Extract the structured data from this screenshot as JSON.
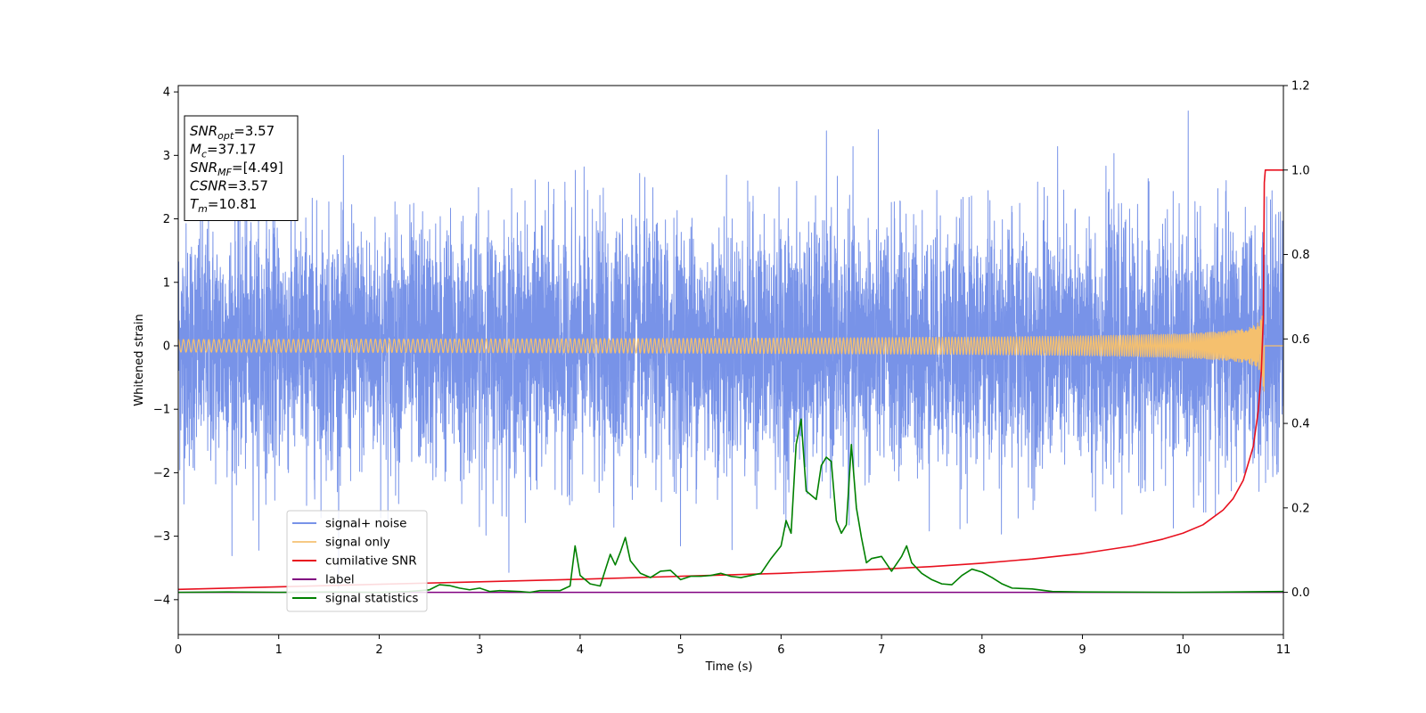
{
  "chart_data": {
    "type": "line",
    "xlabel": "Time (s)",
    "ylabel": "Whitened strain",
    "xlim": [
      0,
      11
    ],
    "ylim_left": [
      -4.55,
      4.1
    ],
    "ylim_right": [
      -0.1,
      1.2
    ],
    "x_ticks": [
      0,
      1,
      2,
      3,
      4,
      5,
      6,
      7,
      8,
      9,
      10,
      11
    ],
    "y_ticks_left": [
      -4,
      -3,
      -2,
      -1,
      0,
      1,
      2,
      3,
      4
    ],
    "y_ticks_right": [
      0.0,
      0.2,
      0.4,
      0.6,
      0.8,
      1.0,
      1.2
    ],
    "grid": false,
    "legend_placement": "lower-left",
    "annotation": {
      "placement": "upper-left",
      "lines": [
        {
          "name": "SNR",
          "sub": "opt",
          "value": "=3.57"
        },
        {
          "name": "M",
          "sub": "c",
          "value": "=37.17"
        },
        {
          "name": "SNR",
          "sub": "MF",
          "value": "=[4.49]"
        },
        {
          "name": "CSNR",
          "sub": "",
          "value": "=3.57"
        },
        {
          "name": "T",
          "sub": "m",
          "value": "=10.81"
        }
      ]
    },
    "series": [
      {
        "name": "signal+ noise",
        "color": "#7893e8",
        "axis": "left",
        "description_kind": "noise",
        "typical_range": [
          -2.7,
          2.7
        ],
        "extreme_range": [
          -4.1,
          3.7
        ]
      },
      {
        "name": "signal only",
        "color": "#f5c06e",
        "axis": "left",
        "description_kind": "chirp",
        "merger_time": 10.81,
        "peak_amplitude": 0.8
      },
      {
        "name": "cumilative SNR",
        "color": "#e8101e",
        "axis": "right",
        "points": [
          [
            0,
            0.007
          ],
          [
            1,
            0.013
          ],
          [
            2,
            0.019
          ],
          [
            3,
            0.025
          ],
          [
            4,
            0.031
          ],
          [
            5,
            0.038
          ],
          [
            6,
            0.045
          ],
          [
            6.5,
            0.05
          ],
          [
            7,
            0.055
          ],
          [
            7.5,
            0.061
          ],
          [
            8,
            0.069
          ],
          [
            8.5,
            0.079
          ],
          [
            9,
            0.092
          ],
          [
            9.5,
            0.11
          ],
          [
            9.8,
            0.126
          ],
          [
            10,
            0.14
          ],
          [
            10.2,
            0.16
          ],
          [
            10.4,
            0.195
          ],
          [
            10.5,
            0.222
          ],
          [
            10.6,
            0.265
          ],
          [
            10.7,
            0.345
          ],
          [
            10.75,
            0.43
          ],
          [
            10.78,
            0.52
          ],
          [
            10.8,
            0.65
          ],
          [
            10.81,
            0.97
          ],
          [
            10.82,
            1.0
          ],
          [
            11,
            1.0
          ]
        ]
      },
      {
        "name": "label",
        "color": "#800080",
        "axis": "right",
        "points": [
          [
            0,
            0.0
          ],
          [
            11,
            0.0
          ]
        ]
      },
      {
        "name": "signal statistics",
        "color": "#008000",
        "axis": "right",
        "points": [
          [
            0,
            0.0
          ],
          [
            0.5,
            0.001
          ],
          [
            1,
            0.0
          ],
          [
            1.5,
            0.001
          ],
          [
            2,
            0.0
          ],
          [
            2.3,
            0.002
          ],
          [
            2.5,
            0.006
          ],
          [
            2.6,
            0.018
          ],
          [
            2.7,
            0.016
          ],
          [
            2.8,
            0.01
          ],
          [
            2.9,
            0.006
          ],
          [
            3.0,
            0.01
          ],
          [
            3.1,
            0.002
          ],
          [
            3.2,
            0.004
          ],
          [
            3.4,
            0.002
          ],
          [
            3.5,
            0.0
          ],
          [
            3.6,
            0.004
          ],
          [
            3.8,
            0.004
          ],
          [
            3.9,
            0.015
          ],
          [
            3.95,
            0.11
          ],
          [
            4.0,
            0.04
          ],
          [
            4.1,
            0.02
          ],
          [
            4.2,
            0.015
          ],
          [
            4.3,
            0.09
          ],
          [
            4.35,
            0.065
          ],
          [
            4.4,
            0.095
          ],
          [
            4.45,
            0.13
          ],
          [
            4.5,
            0.075
          ],
          [
            4.6,
            0.045
          ],
          [
            4.7,
            0.035
          ],
          [
            4.8,
            0.05
          ],
          [
            4.9,
            0.052
          ],
          [
            5.0,
            0.03
          ],
          [
            5.1,
            0.038
          ],
          [
            5.2,
            0.038
          ],
          [
            5.3,
            0.04
          ],
          [
            5.4,
            0.045
          ],
          [
            5.5,
            0.038
          ],
          [
            5.6,
            0.035
          ],
          [
            5.7,
            0.04
          ],
          [
            5.8,
            0.045
          ],
          [
            5.9,
            0.08
          ],
          [
            6.0,
            0.11
          ],
          [
            6.05,
            0.17
          ],
          [
            6.1,
            0.14
          ],
          [
            6.15,
            0.35
          ],
          [
            6.2,
            0.41
          ],
          [
            6.25,
            0.24
          ],
          [
            6.3,
            0.23
          ],
          [
            6.35,
            0.22
          ],
          [
            6.4,
            0.3
          ],
          [
            6.45,
            0.32
          ],
          [
            6.5,
            0.31
          ],
          [
            6.55,
            0.17
          ],
          [
            6.6,
            0.14
          ],
          [
            6.65,
            0.16
          ],
          [
            6.7,
            0.35
          ],
          [
            6.75,
            0.2
          ],
          [
            6.8,
            0.13
          ],
          [
            6.85,
            0.07
          ],
          [
            6.9,
            0.08
          ],
          [
            7.0,
            0.085
          ],
          [
            7.1,
            0.05
          ],
          [
            7.2,
            0.085
          ],
          [
            7.25,
            0.11
          ],
          [
            7.3,
            0.07
          ],
          [
            7.4,
            0.045
          ],
          [
            7.5,
            0.03
          ],
          [
            7.6,
            0.02
          ],
          [
            7.7,
            0.018
          ],
          [
            7.8,
            0.04
          ],
          [
            7.9,
            0.055
          ],
          [
            8.0,
            0.048
          ],
          [
            8.1,
            0.035
          ],
          [
            8.2,
            0.02
          ],
          [
            8.3,
            0.01
          ],
          [
            8.5,
            0.008
          ],
          [
            8.7,
            0.002
          ],
          [
            9.0,
            0.001
          ],
          [
            10.0,
            0.0
          ],
          [
            11.0,
            0.002
          ]
        ]
      }
    ]
  }
}
